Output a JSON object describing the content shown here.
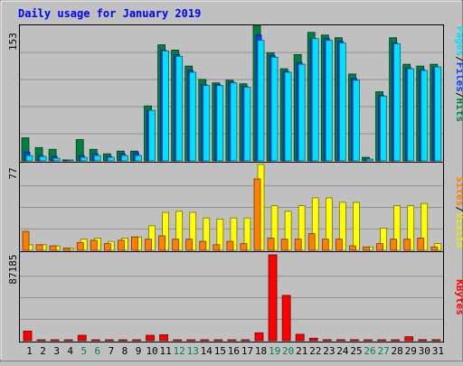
{
  "title": "Daily usage for January 2019",
  "colors": {
    "hits": "#008040",
    "files": "#0040ff",
    "pages": "#00e0ff",
    "visits": "#ffff00",
    "sites": "#ff8000",
    "kbytes": "#ff0000",
    "weekend_label": "#00805c",
    "weekday_label": "#000000",
    "title": "#0000ff",
    "panel_bg": "#c0c0c0"
  },
  "weekend_days": [
    5,
    6,
    12,
    13,
    19,
    20,
    26,
    27
  ],
  "panels": {
    "top": {
      "scale_label": "153",
      "legend": [
        {
          "key": "pages",
          "label": "Pages"
        },
        {
          "key": "sep",
          "label": "/"
        },
        {
          "key": "files",
          "label": "Files"
        },
        {
          "key": "sep",
          "label": "/"
        },
        {
          "key": "hits",
          "label": "Hits"
        }
      ]
    },
    "middle": {
      "scale_label": "77",
      "legend": [
        {
          "key": "sites",
          "label": "Sites"
        },
        {
          "key": "sep",
          "label": "/"
        },
        {
          "key": "visits",
          "label": "Visits"
        }
      ]
    },
    "bottom": {
      "scale_label": "87185",
      "legend": [
        {
          "key": "kbytes",
          "label": "KBytes"
        }
      ]
    }
  },
  "chart_data": [
    {
      "type": "bar",
      "panel": "top",
      "ylim": [
        0,
        153
      ],
      "categories": [
        "1",
        "2",
        "3",
        "4",
        "5",
        "6",
        "7",
        "8",
        "9",
        "10",
        "11",
        "12",
        "13",
        "14",
        "15",
        "16",
        "17",
        "18",
        "19",
        "20",
        "21",
        "22",
        "23",
        "24",
        "25",
        "26",
        "27",
        "28",
        "29",
        "30",
        "31"
      ],
      "series": [
        {
          "name": "Hits",
          "values": [
            26,
            15,
            13,
            1,
            24,
            13,
            8,
            11,
            11,
            62,
            131,
            125,
            107,
            92,
            88,
            91,
            87,
            153,
            122,
            104,
            120,
            145,
            142,
            139,
            98,
            4,
            78,
            139,
            109,
            107,
            109
          ]
        },
        {
          "name": "Files",
          "values": [
            10,
            6,
            5,
            1,
            6,
            8,
            5,
            8,
            9,
            57,
            125,
            120,
            102,
            86,
            86,
            89,
            84,
            142,
            119,
            101,
            111,
            138,
            138,
            135,
            93,
            2,
            74,
            133,
            105,
            103,
            106
          ]
        },
        {
          "name": "Pages",
          "values": [
            6,
            5,
            3,
            1,
            4,
            6,
            4,
            6,
            6,
            57,
            124,
            118,
            100,
            85,
            85,
            88,
            83,
            136,
            117,
            100,
            109,
            138,
            136,
            133,
            91,
            2,
            73,
            132,
            104,
            102,
            106
          ]
        }
      ]
    },
    {
      "type": "bar",
      "panel": "middle",
      "ylim": [
        0,
        77
      ],
      "categories": [
        "1",
        "2",
        "3",
        "4",
        "5",
        "6",
        "7",
        "8",
        "9",
        "10",
        "11",
        "12",
        "13",
        "14",
        "15",
        "16",
        "17",
        "18",
        "19",
        "20",
        "21",
        "22",
        "23",
        "24",
        "25",
        "26",
        "27",
        "28",
        "29",
        "30",
        "31"
      ],
      "series": [
        {
          "name": "Visits",
          "values": [
            5,
            5,
            4,
            2,
            10,
            11,
            8,
            11,
            12,
            22,
            34,
            35,
            34,
            29,
            28,
            29,
            29,
            77,
            40,
            35,
            40,
            47,
            47,
            43,
            43,
            3,
            20,
            40,
            40,
            42,
            6
          ]
        },
        {
          "name": "Sites",
          "values": [
            17,
            5,
            4,
            2,
            7,
            9,
            6,
            9,
            12,
            10,
            13,
            10,
            10,
            8,
            5,
            8,
            6,
            64,
            11,
            10,
            10,
            15,
            10,
            10,
            4,
            3,
            6,
            10,
            10,
            11,
            3
          ]
        }
      ]
    },
    {
      "type": "bar",
      "panel": "bottom",
      "ylim": [
        0,
        87185
      ],
      "categories": [
        "1",
        "2",
        "3",
        "4",
        "5",
        "6",
        "7",
        "8",
        "9",
        "10",
        "11",
        "12",
        "13",
        "14",
        "15",
        "16",
        "17",
        "18",
        "19",
        "20",
        "21",
        "22",
        "23",
        "24",
        "25",
        "26",
        "27",
        "28",
        "29",
        "30",
        "31"
      ],
      "series": [
        {
          "name": "KBytes",
          "values": [
            9800,
            300,
            300,
            300,
            5500,
            300,
            300,
            300,
            300,
            5500,
            6000,
            300,
            300,
            300,
            300,
            300,
            300,
            8000,
            87185,
            46000,
            6500,
            2500,
            1000,
            1000,
            1000,
            300,
            300,
            300,
            4000,
            1000,
            1000
          ]
        }
      ]
    }
  ]
}
